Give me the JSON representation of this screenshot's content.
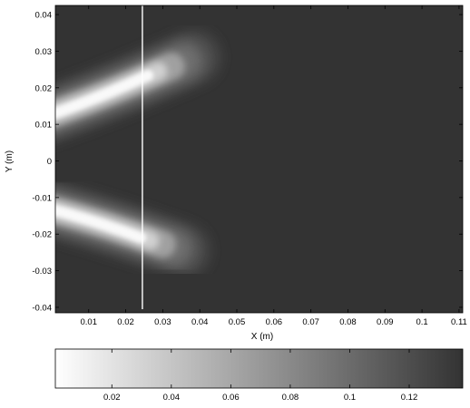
{
  "chart_data": {
    "type": "heatmap",
    "xlabel": "X (m)",
    "ylabel": "Y (m)",
    "xlim": [
      0.001,
      0.111
    ],
    "ylim": [
      -0.0415,
      0.0425
    ],
    "x_ticks": [
      0.01,
      0.02,
      0.03,
      0.04,
      0.05,
      0.06,
      0.07,
      0.08,
      0.09,
      0.1,
      0.11
    ],
    "x_tick_labels": [
      "0.01",
      "0.02",
      "0.03",
      "0.04",
      "0.05",
      "0.06",
      "0.07",
      "0.08",
      "0.09",
      "0.1",
      "0.11"
    ],
    "y_ticks": [
      0.04,
      0.03,
      0.02,
      0.01,
      0,
      -0.01,
      -0.02,
      -0.03,
      -0.04
    ],
    "y_tick_labels": [
      "0.04",
      "0.03",
      "0.02",
      "0.01",
      "0",
      "-0.01",
      "-0.02",
      "-0.03",
      "-0.04"
    ],
    "colormap": "gray",
    "color_low": "#ffffff",
    "color_high": "#333333",
    "colorbar": {
      "range": [
        0.001,
        0.138
      ],
      "ticks": [
        0.02,
        0.04,
        0.06,
        0.08,
        0.1,
        0.12
      ],
      "tick_labels": [
        "0.02",
        "0.04",
        "0.06",
        "0.08",
        "0.1",
        "0.12"
      ],
      "placement": "bottom"
    },
    "lobes": [
      {
        "name": "upper",
        "x_range": [
          0.0,
          0.04
        ],
        "y_start": 0.011,
        "y_end": 0.029,
        "peak_value": 0.005
      },
      {
        "name": "lower",
        "x_range": [
          0.0,
          0.037
        ],
        "y_start": -0.012,
        "y_end": -0.025,
        "peak_value": 0.005
      }
    ],
    "background_value": 0.138,
    "vertical_line": {
      "x": 0.0245,
      "color": "#ffffff"
    },
    "grid": false
  }
}
